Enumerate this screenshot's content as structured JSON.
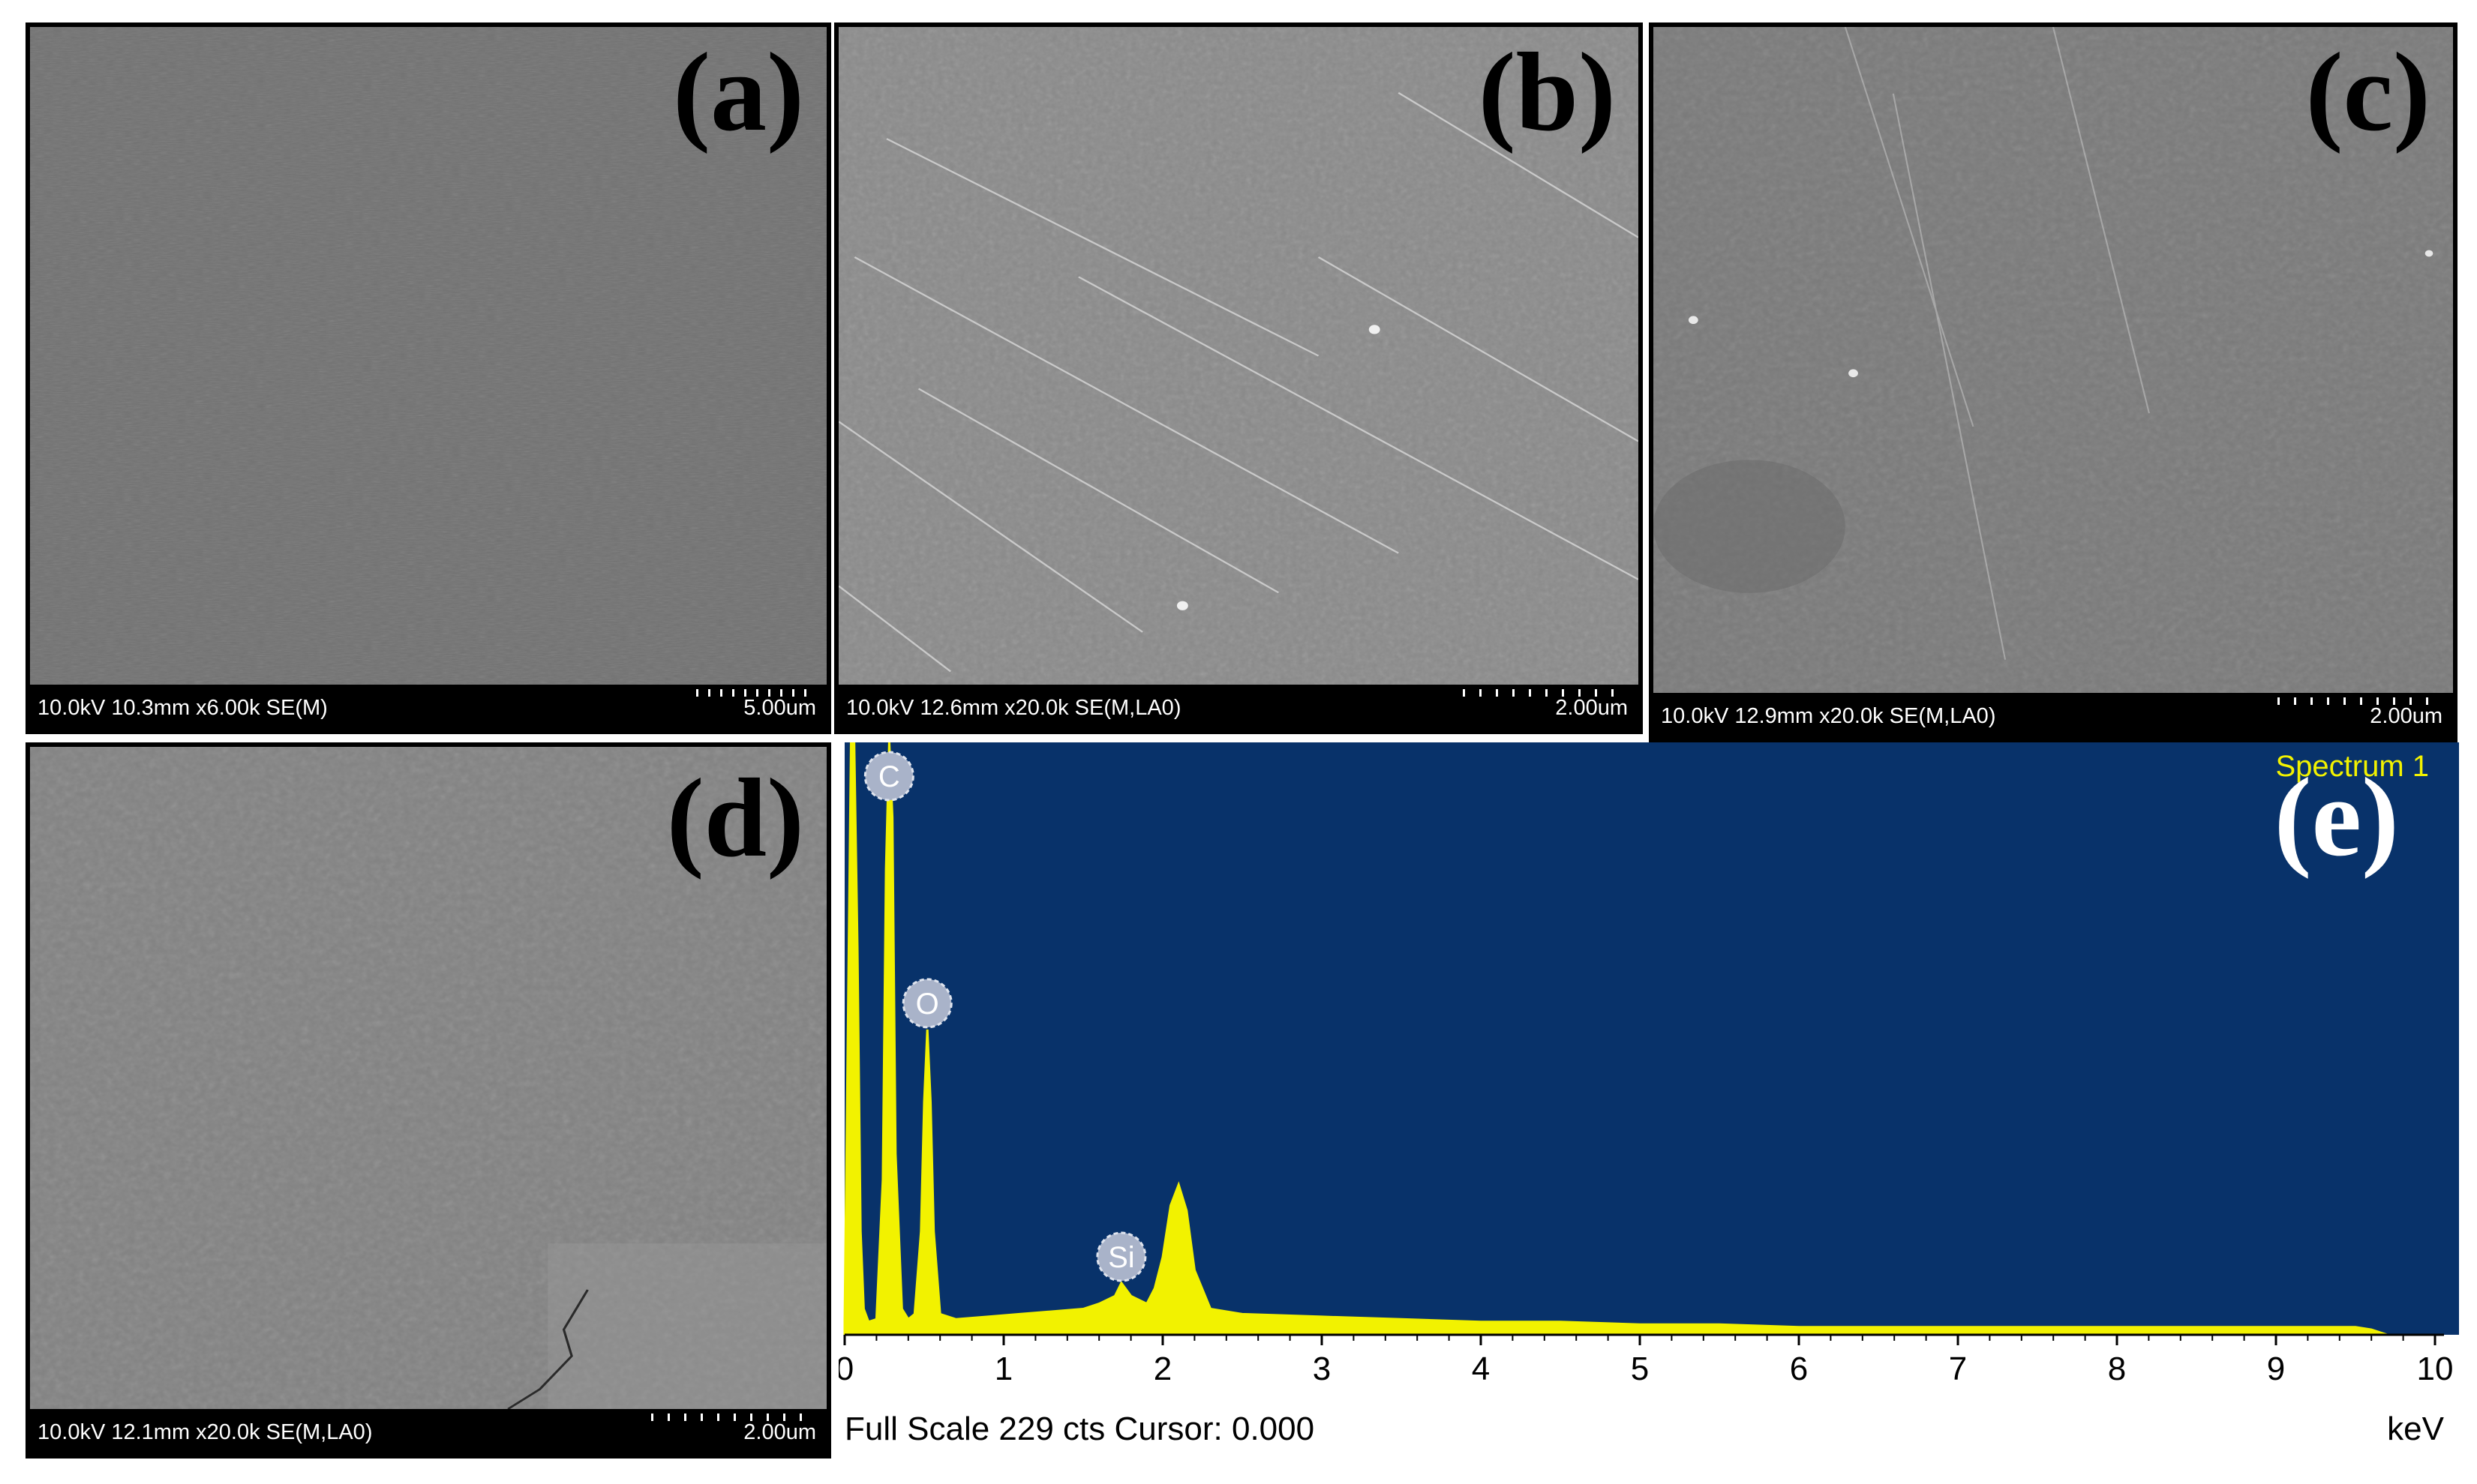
{
  "panels": [
    {
      "label": "(a)",
      "databar": "10.0kV 10.3mm x6.00k SE(M)",
      "scale": "5.00um"
    },
    {
      "label": "(b)",
      "databar": "10.0kV 12.6mm x20.0k SE(M,LA0)",
      "scale": "2.00um"
    },
    {
      "label": "(c)",
      "databar": "10.0kV 12.9mm x20.0k SE(M,LA0)",
      "scale": "2.00um"
    },
    {
      "label": "(d)",
      "databar": "10.0kV 12.1mm x20.0k SE(M,LA0)",
      "scale": "2.00um"
    }
  ],
  "eds": {
    "label": "(e)",
    "spectrum_title": "Spectrum 1",
    "status": "Full Scale 229 cts Cursor: 0.000",
    "unit": "keV",
    "colors": {
      "background": "#08326a",
      "trace": "#f2f200",
      "marker": "#a9b3c9"
    }
  },
  "chart_data": {
    "type": "line",
    "title": "Spectrum 1",
    "xlabel": "keV",
    "xlim": [
      0,
      10
    ],
    "ylim": [
      0,
      229
    ],
    "x_ticks": [
      "0",
      "1",
      "2",
      "3",
      "4",
      "5",
      "6",
      "7",
      "8",
      "9",
      "10"
    ],
    "peak_labels": [
      {
        "element": "C",
        "energy": 0.28
      },
      {
        "element": "O",
        "energy": 0.52
      },
      {
        "element": "Si",
        "energy": 1.74
      }
    ],
    "series": [
      {
        "x": [
          0.0,
          0.04,
          0.06,
          0.08,
          0.1,
          0.12,
          0.15,
          0.2,
          0.24,
          0.26,
          0.28,
          0.3,
          0.32,
          0.36,
          0.4,
          0.44,
          0.48,
          0.5,
          0.52,
          0.54,
          0.56,
          0.6,
          0.7,
          0.9,
          1.1,
          1.3,
          1.5,
          1.6,
          1.7,
          1.74,
          1.8,
          1.9,
          1.95,
          2.0,
          2.05,
          2.1,
          2.15,
          2.2,
          2.3,
          2.5,
          3.0,
          3.5,
          4.0,
          4.5,
          5.0,
          5.5,
          6.0,
          7.0,
          8.0,
          9.0,
          9.5,
          9.6,
          9.7
        ],
        "y": [
          5,
          229,
          229,
          150,
          40,
          10,
          5,
          6,
          60,
          180,
          229,
          200,
          70,
          10,
          6,
          8,
          40,
          90,
          118,
          90,
          40,
          8,
          6,
          7,
          8,
          9,
          10,
          12,
          15,
          20,
          15,
          12,
          18,
          30,
          50,
          58,
          48,
          25,
          10,
          8,
          7,
          6,
          5,
          5,
          4,
          4,
          3,
          3,
          3,
          3,
          3,
          2,
          0
        ]
      }
    ]
  }
}
